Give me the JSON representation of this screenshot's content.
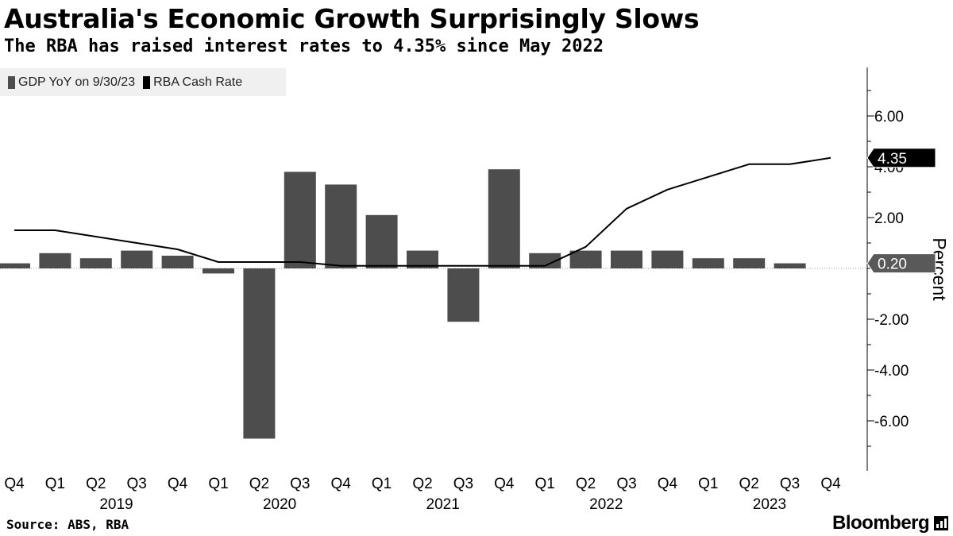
{
  "header": {
    "title": "Australia's Economic Growth Surprisingly Slows",
    "subtitle": "The RBA has raised interest rates to 4.35% since May 2022"
  },
  "legend": {
    "gdp_label": "GDP YoY on 9/30/23",
    "rate_label": "RBA Cash Rate"
  },
  "footer": {
    "source": "Source: ABS, RBA",
    "brand": "Bloomberg",
    "brand_icon": "bloomberg-terminal-icon"
  },
  "chart_data": {
    "type": "bar+line",
    "ylabel": "Percent",
    "ylim": [
      -8,
      8
    ],
    "yticks": [
      -6,
      -4,
      -2,
      0,
      2,
      4,
      6
    ],
    "ytick_labels": [
      "-6.00",
      "-4.00",
      "-2.00",
      "",
      "2.00",
      "4.00",
      "6.00"
    ],
    "categories": [
      "Q4",
      "Q1",
      "Q2",
      "Q3",
      "Q4",
      "Q1",
      "Q2",
      "Q3",
      "Q4",
      "Q1",
      "Q2",
      "Q3",
      "Q4",
      "Q1",
      "Q2",
      "Q3",
      "Q4",
      "Q1",
      "Q2",
      "Q3",
      "Q4"
    ],
    "years": [
      {
        "label": "2019",
        "start": 1,
        "end": 4
      },
      {
        "label": "2020",
        "start": 5,
        "end": 8
      },
      {
        "label": "2021",
        "start": 9,
        "end": 12
      },
      {
        "label": "2022",
        "start": 13,
        "end": 16
      },
      {
        "label": "2023",
        "start": 17,
        "end": 20
      }
    ],
    "series": [
      {
        "name": "GDP YoY on 9/30/23",
        "kind": "bar",
        "color": "#4d4d4d",
        "values": [
          0.2,
          0.6,
          0.4,
          0.7,
          0.5,
          -0.2,
          -6.7,
          3.8,
          3.3,
          2.1,
          0.7,
          -2.1,
          3.9,
          0.6,
          0.7,
          0.7,
          0.7,
          0.4,
          0.4,
          0.2,
          null
        ]
      },
      {
        "name": "RBA Cash Rate",
        "kind": "line",
        "color": "#000000",
        "values": [
          1.5,
          1.5,
          1.25,
          1.0,
          0.75,
          0.25,
          0.25,
          0.25,
          0.1,
          0.1,
          0.1,
          0.1,
          0.1,
          0.1,
          0.85,
          2.35,
          3.1,
          3.6,
          4.1,
          4.1,
          4.35
        ]
      }
    ],
    "annotations": [
      {
        "label": "4.35",
        "value": 4.35,
        "style": "dark"
      },
      {
        "label": "0.20",
        "value": 0.2,
        "style": "light"
      }
    ]
  }
}
